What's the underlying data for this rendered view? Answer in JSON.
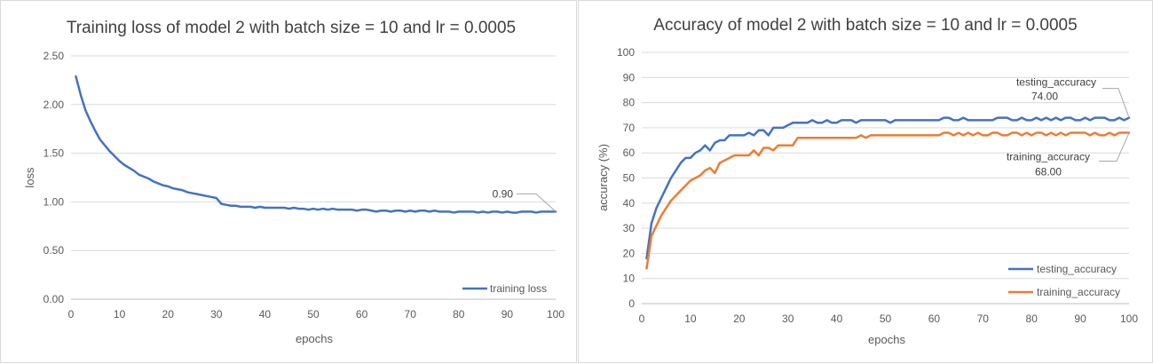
{
  "chart_data": [
    {
      "type": "line",
      "title": "Training loss of model 2 with batch size = 10 and lr = 0.0005",
      "xlabel": "epochs",
      "ylabel": "loss",
      "xlim": [
        0,
        100
      ],
      "ylim": [
        0,
        2.5
      ],
      "x_ticks": [
        "0",
        "10",
        "20",
        "30",
        "40",
        "50",
        "60",
        "70",
        "80",
        "90",
        "100"
      ],
      "y_ticks": [
        "0.00",
        "0.50",
        "1.00",
        "1.50",
        "2.00",
        "2.50"
      ],
      "grid": "horizontal",
      "legend_position": "bottom-right",
      "x": [
        1,
        2,
        3,
        4,
        5,
        6,
        7,
        8,
        9,
        10,
        11,
        12,
        13,
        14,
        15,
        16,
        17,
        18,
        19,
        20,
        21,
        22,
        23,
        24,
        25,
        26,
        27,
        28,
        29,
        30,
        31,
        32,
        33,
        34,
        35,
        36,
        37,
        38,
        39,
        40,
        41,
        42,
        43,
        44,
        45,
        46,
        47,
        48,
        49,
        50,
        51,
        52,
        53,
        54,
        55,
        56,
        57,
        58,
        59,
        60,
        61,
        62,
        63,
        64,
        65,
        66,
        67,
        68,
        69,
        70,
        71,
        72,
        73,
        74,
        75,
        76,
        77,
        78,
        79,
        80,
        81,
        82,
        83,
        84,
        85,
        86,
        87,
        88,
        89,
        90,
        91,
        92,
        93,
        94,
        95,
        96,
        97,
        98,
        99,
        100
      ],
      "series": [
        {
          "name": "training loss",
          "color": "#4472C4",
          "values": [
            2.29,
            2.1,
            1.94,
            1.83,
            1.73,
            1.64,
            1.58,
            1.52,
            1.47,
            1.42,
            1.38,
            1.35,
            1.32,
            1.28,
            1.26,
            1.24,
            1.21,
            1.19,
            1.17,
            1.16,
            1.14,
            1.13,
            1.12,
            1.1,
            1.09,
            1.08,
            1.07,
            1.06,
            1.05,
            1.04,
            0.98,
            0.97,
            0.96,
            0.96,
            0.95,
            0.95,
            0.95,
            0.94,
            0.95,
            0.94,
            0.94,
            0.94,
            0.94,
            0.94,
            0.93,
            0.94,
            0.93,
            0.93,
            0.92,
            0.93,
            0.92,
            0.93,
            0.92,
            0.93,
            0.92,
            0.92,
            0.92,
            0.92,
            0.91,
            0.92,
            0.92,
            0.91,
            0.9,
            0.91,
            0.91,
            0.9,
            0.91,
            0.91,
            0.9,
            0.91,
            0.9,
            0.91,
            0.91,
            0.9,
            0.91,
            0.9,
            0.9,
            0.9,
            0.89,
            0.9,
            0.9,
            0.9,
            0.9,
            0.89,
            0.9,
            0.89,
            0.9,
            0.9,
            0.89,
            0.9,
            0.89,
            0.89,
            0.9,
            0.9,
            0.9,
            0.89,
            0.9,
            0.9,
            0.9,
            0.9
          ]
        }
      ],
      "annotations": [
        {
          "series": "training loss",
          "x": 100,
          "text": "0.90"
        }
      ]
    },
    {
      "type": "line",
      "title": "Accuracy of model 2 with batch size = 10 and lr = 0.0005",
      "xlabel": "epochs",
      "ylabel": "accuracy (%)",
      "xlim": [
        0,
        100
      ],
      "ylim": [
        0,
        100
      ],
      "x_ticks": [
        "0",
        "10",
        "20",
        "30",
        "40",
        "50",
        "60",
        "70",
        "80",
        "90",
        "100"
      ],
      "y_ticks": [
        "0",
        "10",
        "20",
        "30",
        "40",
        "50",
        "60",
        "70",
        "80",
        "90",
        "100"
      ],
      "grid": "horizontal",
      "legend_position": "bottom-right",
      "x": [
        1,
        2,
        3,
        4,
        5,
        6,
        7,
        8,
        9,
        10,
        11,
        12,
        13,
        14,
        15,
        16,
        17,
        18,
        19,
        20,
        21,
        22,
        23,
        24,
        25,
        26,
        27,
        28,
        29,
        30,
        31,
        32,
        33,
        34,
        35,
        36,
        37,
        38,
        39,
        40,
        41,
        42,
        43,
        44,
        45,
        46,
        47,
        48,
        49,
        50,
        51,
        52,
        53,
        54,
        55,
        56,
        57,
        58,
        59,
        60,
        61,
        62,
        63,
        64,
        65,
        66,
        67,
        68,
        69,
        70,
        71,
        72,
        73,
        74,
        75,
        76,
        77,
        78,
        79,
        80,
        81,
        82,
        83,
        84,
        85,
        86,
        87,
        88,
        89,
        90,
        91,
        92,
        93,
        94,
        95,
        96,
        97,
        98,
        99,
        100
      ],
      "series": [
        {
          "name": "testing_accuracy",
          "color": "#4472C4",
          "values": [
            18,
            32,
            38,
            42,
            46,
            50,
            53,
            56,
            58,
            58,
            60,
            61,
            63,
            61,
            64,
            65,
            65,
            67,
            67,
            67,
            67,
            68,
            67,
            69,
            69,
            67,
            70,
            70,
            70,
            71,
            72,
            72,
            72,
            72,
            73,
            72,
            72,
            73,
            72,
            72,
            73,
            73,
            73,
            72,
            73,
            73,
            73,
            73,
            73,
            73,
            72,
            73,
            73,
            73,
            73,
            73,
            73,
            73,
            73,
            73,
            73,
            74,
            74,
            73,
            73,
            74,
            73,
            73,
            73,
            73,
            73,
            73,
            74,
            74,
            74,
            73,
            73,
            74,
            73,
            73,
            74,
            73,
            74,
            73,
            74,
            73,
            74,
            74,
            73,
            73,
            74,
            73,
            74,
            74,
            74,
            73,
            73,
            74,
            73,
            74
          ]
        },
        {
          "name": "training_accuracy",
          "color": "#ED7D31",
          "values": [
            14,
            27,
            31,
            35,
            38,
            41,
            43,
            45,
            47,
            49,
            50,
            51,
            53,
            54,
            52,
            56,
            57,
            58,
            59,
            59,
            59,
            59,
            61,
            59,
            62,
            62,
            61,
            63,
            63,
            63,
            63,
            66,
            66,
            66,
            66,
            66,
            66,
            66,
            66,
            66,
            66,
            66,
            66,
            66,
            67,
            66,
            67,
            67,
            67,
            67,
            67,
            67,
            67,
            67,
            67,
            67,
            67,
            67,
            67,
            67,
            67,
            68,
            68,
            67,
            68,
            67,
            68,
            67,
            68,
            67,
            67,
            68,
            68,
            67,
            67,
            68,
            68,
            67,
            68,
            67,
            68,
            68,
            67,
            68,
            67,
            68,
            67,
            68,
            68,
            68,
            68,
            67,
            68,
            67,
            67,
            68,
            67,
            68,
            68,
            68
          ]
        }
      ],
      "annotations": [
        {
          "series": "testing_accuracy",
          "x": 100,
          "label": "testing_accuracy",
          "text": "74.00"
        },
        {
          "series": "training_accuracy",
          "x": 100,
          "label": "training_accuracy",
          "text": "68.00"
        }
      ]
    }
  ]
}
